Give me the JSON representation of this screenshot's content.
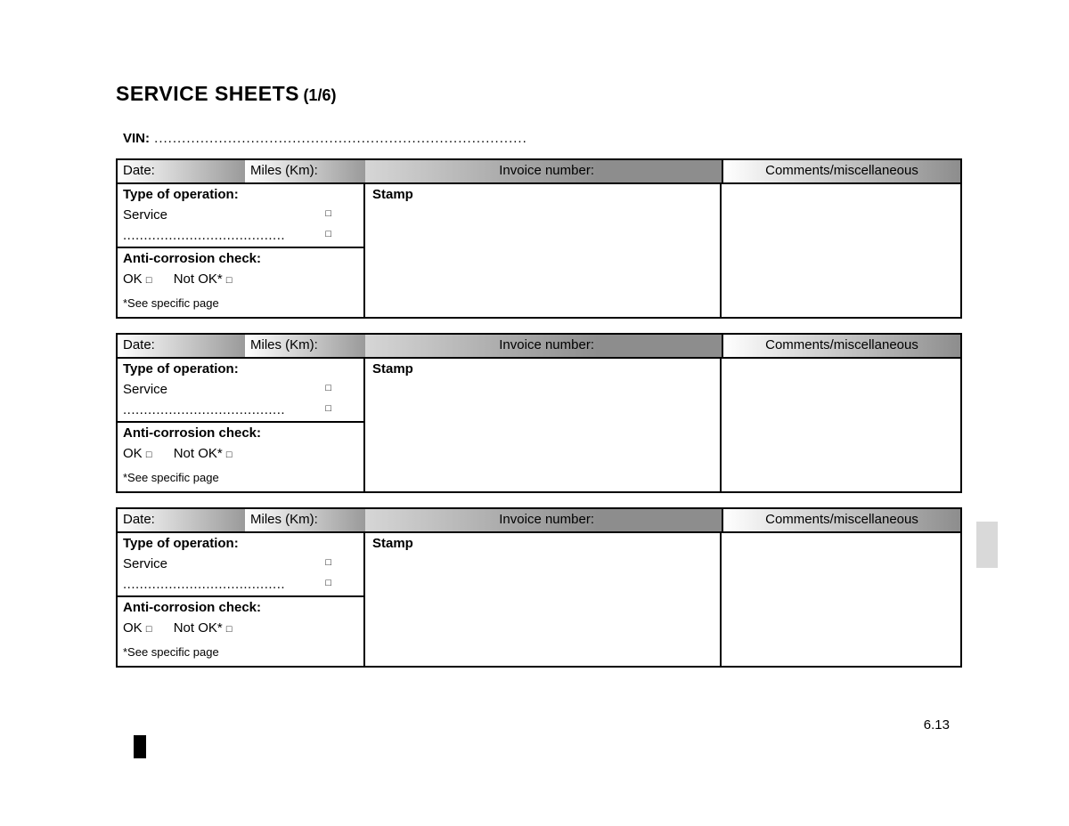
{
  "title_main": "SERVICE SHEETS",
  "title_sub": "(1/6)",
  "vin_label": "VIN:",
  "vin_dots": " .................................................................................",
  "header": {
    "date": "Date:",
    "miles": "Miles (Km):",
    "invoice": "Invoice number:",
    "comments": "Comments/miscellaneous"
  },
  "operation": {
    "title": "Type of operation:",
    "service": "Service",
    "dots": ".......................................",
    "checkbox": "□"
  },
  "stamp": "Stamp",
  "anticorrosion": {
    "title": "Anti-corrosion check:",
    "ok": "OK",
    "notok": "Not OK*",
    "checkbox": "□",
    "note": "*See specific page"
  },
  "page_number": "6.13"
}
